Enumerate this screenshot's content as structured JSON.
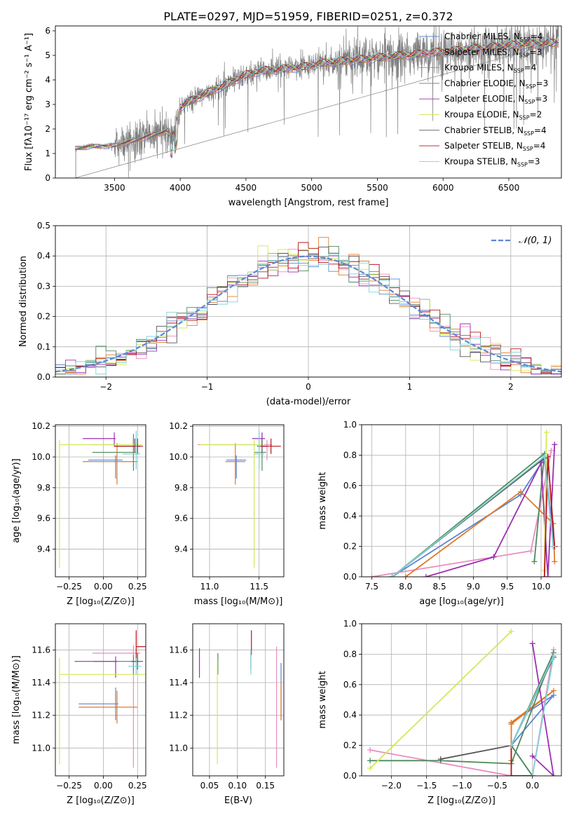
{
  "figure": {
    "title": "PLATE=0297, MJD=51959, FIBERID=0251, z=0.372"
  },
  "colors": {
    "Chabrier MILES": "#5b86d6",
    "Salpeter MILES": "#e98cbf",
    "Kroupa MILES": "#e07a28",
    "Chabrier ELODIE": "#4f8a5c",
    "Salpeter ELODIE": "#9b2fb0",
    "Kroupa ELODIE": "#d4e85a",
    "Chabrier STELIB": "#555555",
    "Salpeter STELIB": "#b8161b",
    "Kroupa STELIB": "#7fd3d8",
    "data": "#808080",
    "normal": "#5b86d6"
  },
  "chart_data": [
    {
      "id": "spectrum",
      "type": "line",
      "title": "PLATE=0297, MJD=51959, FIBERID=0251, z=0.372",
      "xlabel": "wavelength [Angstrom, rest frame]",
      "ylabel": "Flux [fλ10⁻¹⁷ erg cm⁻² s⁻¹ A⁻¹]",
      "xlim": [
        3050,
        6900
      ],
      "ylim": [
        0,
        6.2
      ],
      "xticks": [
        3500,
        4000,
        4500,
        5000,
        5500,
        6000,
        6500
      ],
      "yticks": [
        0,
        1,
        2,
        3,
        4,
        5,
        6
      ],
      "grid": false,
      "legend_position": "top-right",
      "legend": [
        {
          "label": "Chabrier MILES, N",
          "sub": "SSP",
          "tail": "=4"
        },
        {
          "label": "Salpeter MILES, N",
          "sub": "SSP",
          "tail": "=3"
        },
        {
          "label": "Kroupa MILES, N",
          "sub": "SSP",
          "tail": "=4"
        },
        {
          "label": "Chabrier ELODIE, N",
          "sub": "SSP",
          "tail": "=3"
        },
        {
          "label": "Salpeter ELODIE, N",
          "sub": "SSP",
          "tail": "=3"
        },
        {
          "label": "Kroupa ELODIE, N",
          "sub": "SSP",
          "tail": "=2"
        },
        {
          "label": "Chabrier STELIB, N",
          "sub": "SSP",
          "tail": "=4"
        },
        {
          "label": "Salpeter STELIB, N",
          "sub": "SSP",
          "tail": "=4"
        },
        {
          "label": "Kroupa STELIB, N",
          "sub": "SSP",
          "tail": "=3"
        }
      ],
      "continuum_x": [
        3200,
        3300,
        3400,
        3500,
        3600,
        3700,
        3800,
        3900,
        3950,
        4000,
        4100,
        4200,
        4300,
        4400,
        4500,
        4600,
        4700,
        4800,
        4900,
        5000,
        5100,
        5200,
        5300,
        5400,
        5500,
        5600,
        5700,
        5800,
        5900,
        6000,
        6100,
        6200,
        6300,
        6400,
        6500,
        6600,
        6700,
        6800,
        6880
      ],
      "continuum_y": [
        1.2,
        1.28,
        1.3,
        1.32,
        1.45,
        1.6,
        1.75,
        1.9,
        1.7,
        2.9,
        3.2,
        3.45,
        3.7,
        3.95,
        4.2,
        4.35,
        4.4,
        4.45,
        4.5,
        4.6,
        4.7,
        4.75,
        4.8,
        4.85,
        4.9,
        4.95,
        5.0,
        5.05,
        5.1,
        5.15,
        5.2,
        5.25,
        5.3,
        5.35,
        5.4,
        5.45,
        5.45,
        5.5,
        5.5
      ]
    },
    {
      "id": "residuals",
      "type": "histogram",
      "xlabel": "(data-model)/error",
      "ylabel": "Normed distribution",
      "xlim": [
        -2.5,
        2.5
      ],
      "ylim": [
        0,
        0.5
      ],
      "xticks": [
        -2,
        -1,
        0,
        1,
        2
      ],
      "yticks": [
        0.0,
        0.1,
        0.2,
        0.3,
        0.4,
        0.5
      ],
      "grid": true,
      "legend_position": "top-right",
      "legend": "𝒩(0, 1)",
      "bin_width": 0.1
    },
    {
      "id": "age-vs-Z",
      "type": "errorbar",
      "xlabel": "Z [log₁₀(Z/Z⊙)]",
      "ylabel": "age  [log₁₀(age/yr)]",
      "xlim": [
        -0.35,
        0.31
      ],
      "ylim": [
        9.22,
        10.21
      ],
      "xticks": [
        -0.25,
        0.0,
        0.25
      ],
      "yticks": [
        9.4,
        9.6,
        9.8,
        10.0,
        10.2
      ],
      "grid": true,
      "points": [
        {
          "model": "Chabrier MILES",
          "x": 0.09,
          "xerr": [
            0.2,
            0.05
          ],
          "y": 9.98,
          "yerr": [
            0.12,
            0.03
          ]
        },
        {
          "model": "Salpeter MILES",
          "x": 0.22,
          "xerr": [
            0.3,
            0.05
          ],
          "y": 10.08,
          "yerr": [
            0.1,
            0.03
          ]
        },
        {
          "model": "Kroupa MILES",
          "x": 0.1,
          "xerr": [
            0.25,
            0.15
          ],
          "y": 9.97,
          "yerr": [
            0.15,
            0.12
          ]
        },
        {
          "model": "Chabrier ELODIE",
          "x": 0.22,
          "xerr": [
            0.3,
            0.02
          ],
          "y": 10.03,
          "yerr": [
            0.12,
            0.12
          ]
        },
        {
          "model": "Salpeter ELODIE",
          "x": 0.08,
          "xerr": [
            0.23,
            0.01
          ],
          "y": 10.12,
          "yerr": [
            0.05,
            0.04
          ]
        },
        {
          "model": "Kroupa ELODIE",
          "x": -0.32,
          "xerr": [
            0.0,
            0.6
          ],
          "y": 10.08,
          "yerr": [
            0.8,
            0.03
          ]
        },
        {
          "model": "Chabrier STELIB",
          "x": 0.23,
          "xerr": [
            0.15,
            0.04
          ],
          "y": 10.07,
          "yerr": [
            0.04,
            0.05
          ]
        },
        {
          "model": "Salpeter STELIB",
          "x": 0.25,
          "xerr": [
            0.17,
            0.04
          ],
          "y": 10.07,
          "yerr": [
            0.05,
            0.05
          ]
        },
        {
          "model": "Kroupa STELIB",
          "x": 0.24,
          "xerr": [
            0.1,
            0.03
          ],
          "y": 10.02,
          "yerr": [
            0.1,
            0.15
          ]
        }
      ]
    },
    {
      "id": "age-vs-mass",
      "type": "errorbar",
      "xlabel": "mass [log₁₀(M/M⊙)]",
      "xlim": [
        10.83,
        11.75
      ],
      "ylim": [
        9.22,
        10.21
      ],
      "xticks": [
        11.0,
        11.5
      ],
      "yticks": [
        9.4,
        9.6,
        9.8,
        10.0,
        10.2
      ],
      "grid": true,
      "points": [
        {
          "model": "Chabrier MILES",
          "x": 11.27,
          "xerr": [
            0.1,
            0.1
          ],
          "y": 9.98,
          "yerr": [
            0.12,
            0.03
          ]
        },
        {
          "model": "Salpeter MILES",
          "x": 11.58,
          "xerr": [
            0.7,
            0.05
          ],
          "y": 10.08,
          "yerr": [
            0.1,
            0.03
          ]
        },
        {
          "model": "Kroupa MILES",
          "x": 11.26,
          "xerr": [
            0.1,
            0.1
          ],
          "y": 9.97,
          "yerr": [
            0.15,
            0.12
          ]
        },
        {
          "model": "Chabrier ELODIE",
          "x": 11.53,
          "xerr": [
            0.08,
            0.04
          ],
          "y": 10.03,
          "yerr": [
            0.12,
            0.12
          ]
        },
        {
          "model": "Salpeter ELODIE",
          "x": 11.53,
          "xerr": [
            0.1,
            0.03
          ],
          "y": 10.12,
          "yerr": [
            0.05,
            0.04
          ]
        },
        {
          "model": "Kroupa ELODIE",
          "x": 11.45,
          "xerr": [
            0.55,
            0.1
          ],
          "y": 10.08,
          "yerr": [
            0.8,
            0.03
          ]
        },
        {
          "model": "Chabrier STELIB",
          "x": 11.53,
          "xerr": [
            0.05,
            0.05
          ],
          "y": 10.07,
          "yerr": [
            0.04,
            0.05
          ]
        },
        {
          "model": "Salpeter STELIB",
          "x": 11.62,
          "xerr": [
            0.1,
            0.1
          ],
          "y": 10.07,
          "yerr": [
            0.05,
            0.05
          ]
        },
        {
          "model": "Kroupa STELIB",
          "x": 11.5,
          "xerr": [
            0.05,
            0.05
          ],
          "y": 10.02,
          "yerr": [
            0.1,
            0.15
          ]
        }
      ]
    },
    {
      "id": "mass-weight-vs-age",
      "type": "line",
      "xlabel": "age  [log₁₀(age/yr)]",
      "ylabel": "mass weight",
      "xlim": [
        7.35,
        10.3
      ],
      "ylim": [
        0,
        1
      ],
      "xticks": [
        7.5,
        8.0,
        8.5,
        9.0,
        9.5,
        10.0
      ],
      "yticks": [
        0.0,
        0.2,
        0.4,
        0.6,
        0.8,
        1.0
      ],
      "grid": true,
      "series": [
        {
          "model": "Chabrier MILES",
          "x": [
            7.8,
            9.7,
            10.05,
            10.2
          ],
          "y": [
            0.0,
            0.54,
            0.78,
            0.2
          ]
        },
        {
          "model": "Salpeter MILES",
          "x": [
            7.5,
            9.85,
            10.15
          ],
          "y": [
            0.0,
            0.17,
            0.83
          ]
        },
        {
          "model": "Kroupa MILES",
          "x": [
            8.0,
            9.7,
            10.18,
            10.2
          ],
          "y": [
            0.0,
            0.56,
            0.35,
            0.1
          ]
        },
        {
          "model": "Chabrier ELODIE",
          "x": [
            7.8,
            10.05,
            9.9
          ],
          "y": [
            0.0,
            0.81,
            0.1
          ]
        },
        {
          "model": "Salpeter ELODIE",
          "x": [
            8.3,
            9.3,
            10.0,
            10.1,
            10.2
          ],
          "y": [
            0.0,
            0.13,
            0.75,
            0.0,
            0.87
          ]
        },
        {
          "model": "Kroupa ELODIE",
          "x": [
            10.05,
            10.08
          ],
          "y": [
            0.04,
            0.95
          ]
        },
        {
          "model": "Chabrier STELIB",
          "x": [
            7.8,
            10.05,
            10.18
          ],
          "y": [
            0.0,
            0.78,
            0.2
          ]
        },
        {
          "model": "Salpeter STELIB",
          "x": [
            10.05,
            10.1,
            10.2
          ],
          "y": [
            0.0,
            0.79,
            0.2
          ]
        },
        {
          "model": "Kroupa STELIB",
          "x": [
            7.8,
            10.05,
            10.18
          ],
          "y": [
            0.0,
            0.79,
            0.2
          ]
        }
      ]
    },
    {
      "id": "mass-vs-Z",
      "type": "errorbar",
      "xlabel": "Z [log₁₀(Z/Z⊙)]",
      "ylabel": "mass [log₁₀(M/M⊙)]",
      "xlim": [
        -0.35,
        0.31
      ],
      "ylim": [
        10.83,
        11.76
      ],
      "xticks": [
        -0.25,
        0.0,
        0.25
      ],
      "yticks": [
        11.0,
        11.2,
        11.4,
        11.6
      ],
      "grid": true,
      "points": [
        {
          "model": "Chabrier MILES",
          "x": 0.09,
          "xerr": [
            0.27,
            0.02
          ],
          "y": 11.27,
          "yerr": [
            0.1,
            0.1
          ]
        },
        {
          "model": "Salpeter MILES",
          "x": 0.22,
          "xerr": [
            0.3,
            0.05
          ],
          "y": 11.58,
          "yerr": [
            0.7,
            0.05
          ]
        },
        {
          "model": "Kroupa MILES",
          "x": 0.1,
          "xerr": [
            0.28,
            0.15
          ],
          "y": 11.25,
          "yerr": [
            0.1,
            0.1
          ]
        },
        {
          "model": "Chabrier ELODIE",
          "x": 0.22,
          "xerr": [
            0.29,
            0.04
          ],
          "y": 11.53,
          "yerr": [
            0.08,
            0.04
          ]
        },
        {
          "model": "Salpeter ELODIE",
          "x": 0.09,
          "xerr": [
            0.3,
            0.01
          ],
          "y": 11.53,
          "yerr": [
            0.1,
            0.03
          ]
        },
        {
          "model": "Kroupa ELODIE",
          "x": -0.32,
          "xerr": [
            0.0,
            0.63
          ],
          "y": 11.45,
          "yerr": [
            0.55,
            0.1
          ]
        },
        {
          "model": "Chabrier STELIB",
          "x": 0.25,
          "xerr": [
            0.05,
            0.04
          ],
          "y": 11.53,
          "yerr": [
            0.05,
            0.05
          ]
        },
        {
          "model": "Salpeter STELIB",
          "x": 0.24,
          "xerr": [
            0.0,
            0.07
          ],
          "y": 11.62,
          "yerr": [
            0.1,
            0.1
          ]
        },
        {
          "model": "Kroupa STELIB",
          "x": 0.24,
          "xerr": [
            0.06,
            0.04
          ],
          "y": 11.5,
          "yerr": [
            0.05,
            0.05
          ]
        }
      ]
    },
    {
      "id": "mass-vs-EBV",
      "type": "errorbar",
      "xlabel": "E(B-V)",
      "xlim": [
        0.02,
        0.183
      ],
      "ylim": [
        10.83,
        11.76
      ],
      "xticks": [
        0.05,
        0.1,
        0.15
      ],
      "yticks": [
        11.0,
        11.2,
        11.4,
        11.6
      ],
      "grid": true,
      "points": [
        {
          "model": "Chabrier MILES",
          "x": 0.178,
          "y": 11.27,
          "yerr": [
            0.1,
            0.25
          ]
        },
        {
          "model": "Salpeter MILES",
          "x": 0.17,
          "y": 11.58,
          "yerr": [
            0.7,
            0.04
          ]
        },
        {
          "model": "Kroupa MILES",
          "x": 0.178,
          "y": 11.25,
          "yerr": [
            0.08,
            0.15
          ]
        },
        {
          "model": "Chabrier ELODIE",
          "x": 0.065,
          "y": 11.53,
          "yerr": [
            0.08,
            0.05
          ]
        },
        {
          "model": "Salpeter ELODIE",
          "x": 0.032,
          "y": 11.53,
          "yerr": [
            0.1,
            0.08
          ]
        },
        {
          "model": "Kroupa ELODIE",
          "x": 0.064,
          "y": 11.45,
          "yerr": [
            0.55,
            0.08
          ]
        },
        {
          "model": "Chabrier STELIB",
          "x": 0.124,
          "y": 11.53,
          "yerr": [
            0.05,
            0.05
          ]
        },
        {
          "model": "Salpeter STELIB",
          "x": 0.125,
          "y": 11.62,
          "yerr": [
            0.05,
            0.1
          ]
        },
        {
          "model": "Kroupa STELIB",
          "x": 0.124,
          "y": 11.5,
          "yerr": [
            0.05,
            0.1
          ]
        }
      ]
    },
    {
      "id": "mass-weight-vs-Z",
      "type": "line",
      "xlabel": "Z [log₁₀(Z/Z⊙)]",
      "ylabel": "mass weight",
      "xlim": [
        -2.42,
        0.41
      ],
      "ylim": [
        0,
        1
      ],
      "xticks": [
        -2.0,
        -1.5,
        -1.0,
        -0.5,
        0.0
      ],
      "yticks": [
        0.0,
        0.2,
        0.4,
        0.6,
        0.8,
        1.0
      ],
      "grid": true,
      "series": [
        {
          "model": "Chabrier MILES",
          "x": [
            -0.3,
            0.3,
            -0.3,
            0.0
          ],
          "y": [
            0.35,
            0.53,
            0.2,
            0.0
          ]
        },
        {
          "model": "Salpeter MILES",
          "x": [
            -2.3,
            -0.3,
            0.0,
            0.3
          ],
          "y": [
            0.17,
            0.0,
            0.0,
            0.83
          ]
        },
        {
          "model": "Kroupa MILES",
          "x": [
            -0.3,
            0.3,
            -0.3,
            -0.3
          ],
          "y": [
            0.34,
            0.56,
            0.35,
            0.1
          ]
        },
        {
          "model": "Chabrier ELODIE",
          "x": [
            -2.3,
            -1.3,
            -0.3,
            0.3,
            -0.3,
            0.0
          ],
          "y": [
            0.1,
            0.1,
            0.08,
            0.81,
            0.2,
            0.0
          ]
        },
        {
          "model": "Salpeter ELODIE",
          "x": [
            0.0,
            0.3,
            0.0
          ],
          "y": [
            0.87,
            0.0,
            0.13
          ]
        },
        {
          "model": "Kroupa ELODIE",
          "x": [
            -2.3,
            -0.3
          ],
          "y": [
            0.05,
            0.95
          ]
        },
        {
          "model": "Chabrier STELIB",
          "x": [
            -1.3,
            -0.3,
            0.3
          ],
          "y": [
            0.11,
            0.2,
            0.78
          ]
        },
        {
          "model": "Salpeter STELIB",
          "x": [
            -0.3,
            -0.3,
            0.0
          ],
          "y": [
            0.2,
            0.0,
            0.0
          ]
        },
        {
          "model": "Kroupa STELIB",
          "x": [
            -0.3,
            0.3,
            0.0
          ],
          "y": [
            0.2,
            0.79,
            0.0
          ]
        }
      ]
    }
  ]
}
